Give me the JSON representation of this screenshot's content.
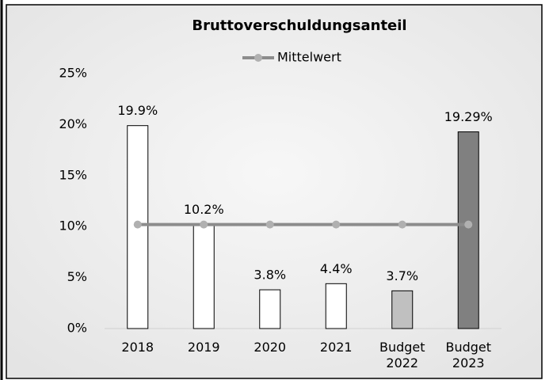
{
  "chart_data": {
    "type": "bar",
    "title": "Bruttoverschuldungsanteil",
    "categories": [
      "2018",
      "2019",
      "2020",
      "2021",
      "Budget 2022",
      "Budget 2023"
    ],
    "values": [
      19.9,
      10.2,
      3.8,
      4.4,
      3.7,
      19.29
    ],
    "value_labels": [
      "19.9%",
      "10.2%",
      "3.8%",
      "4.4%",
      "3.7%",
      "19.29%"
    ],
    "colors": [
      "#ffffff",
      "#ffffff",
      "#ffffff",
      "#ffffff",
      "#c0c0c0",
      "#808080"
    ],
    "series": [
      {
        "name": "Mittelwert",
        "type": "line",
        "color": "#8c8c8c",
        "values": [
          10.2,
          10.2,
          10.2,
          10.2,
          10.2,
          10.2
        ]
      }
    ],
    "ylim": [
      0,
      25
    ],
    "yticks": [
      {
        "value": 0,
        "label": "0%"
      },
      {
        "value": 5,
        "label": "5%"
      },
      {
        "value": 10,
        "label": "10%"
      },
      {
        "value": 15,
        "label": "15%"
      },
      {
        "value": 20,
        "label": "20%"
      },
      {
        "value": 25,
        "label": "25%"
      }
    ],
    "grid": false,
    "legend": "top"
  }
}
